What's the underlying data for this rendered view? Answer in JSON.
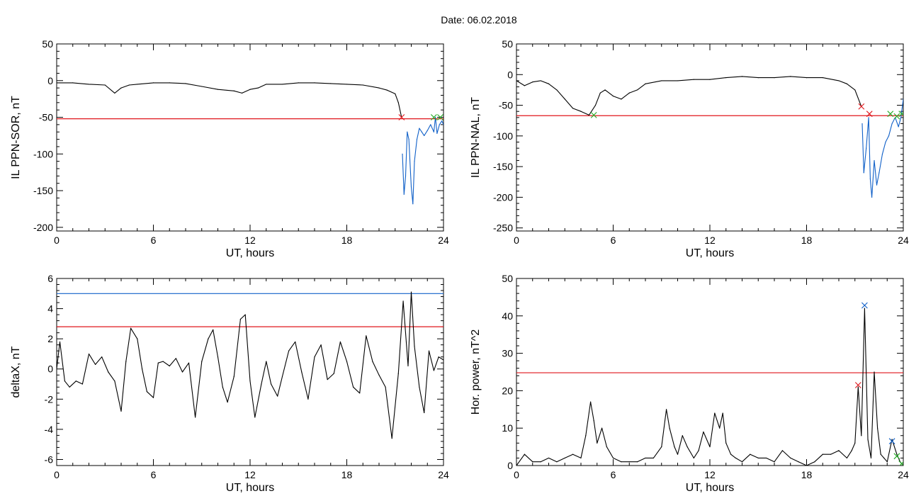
{
  "title": "Date:  06.02.2018",
  "colors": {
    "trace": "#000000",
    "threshold_red": "#e0161b",
    "threshold_blue": "#1060c8",
    "marker_green": "#22aa22"
  },
  "chart_data": [
    {
      "id": "sor",
      "type": "line",
      "xlabel": "UT, hours",
      "ylabel": "IL PPN-SOR, nT",
      "xlim": [
        0,
        24
      ],
      "ylim": [
        -205,
        50
      ],
      "xticks": [
        "0",
        "6",
        "12",
        "18",
        "24"
      ],
      "xtick_values": [
        0,
        6,
        12,
        18,
        24
      ],
      "yticks": [
        "50",
        "0",
        "-50",
        "-100",
        "-150",
        "-200"
      ],
      "ytick_values": [
        50,
        0,
        -50,
        -100,
        -150,
        -200
      ],
      "hlines": [
        {
          "y": -52,
          "color": "red"
        }
      ],
      "series": [
        {
          "color": "black",
          "x": [
            0,
            1,
            2,
            3,
            3.6,
            4,
            4.5,
            5,
            6,
            7,
            8,
            9,
            10,
            11,
            11.5,
            12,
            12.5,
            13,
            14,
            15,
            16,
            17,
            18,
            19,
            20,
            20.5,
            21,
            21.2,
            21.4
          ],
          "y": [
            -3,
            -3,
            -5,
            -6,
            -17,
            -10,
            -6,
            -5,
            -3,
            -3,
            -4,
            -8,
            -12,
            -14,
            -17,
            -12,
            -10,
            -5,
            -5,
            -3,
            -3,
            -4,
            -5,
            -6,
            -10,
            -13,
            -18,
            -30,
            -50
          ]
        },
        {
          "color": "blue",
          "x": [
            21.45,
            21.55,
            21.65,
            21.75,
            21.85,
            22.0,
            22.1,
            22.2,
            22.35,
            22.5,
            22.65,
            22.8,
            23.0,
            23.2,
            23.4,
            23.5,
            23.6,
            23.75,
            23.9,
            24
          ],
          "y": [
            -100,
            -155,
            -130,
            -70,
            -80,
            -145,
            -168,
            -110,
            -80,
            -65,
            -70,
            -75,
            -68,
            -60,
            -70,
            -50,
            -72,
            -60,
            -55,
            -60
          ]
        }
      ],
      "markers": [
        {
          "x": 21.4,
          "y": -50,
          "color": "red"
        },
        {
          "x": 23.4,
          "y": -50,
          "color": "green"
        },
        {
          "x": 23.8,
          "y": -50,
          "color": "green"
        }
      ]
    },
    {
      "id": "nal",
      "type": "line",
      "xlabel": "UT, hours",
      "ylabel": "IL PPN-NAL, nT",
      "xlim": [
        0,
        24
      ],
      "ylim": [
        -255,
        50
      ],
      "xticks": [
        "0",
        "6",
        "12",
        "18",
        "24"
      ],
      "xtick_values": [
        0,
        6,
        12,
        18,
        24
      ],
      "yticks": [
        "50",
        "0",
        "-50",
        "-100",
        "-150",
        "-200",
        "-250"
      ],
      "ytick_values": [
        50,
        0,
        -50,
        -100,
        -150,
        -200,
        -250
      ],
      "hlines": [
        {
          "y": -67,
          "color": "red"
        }
      ],
      "series": [
        {
          "color": "black",
          "x": [
            0,
            0.5,
            1,
            1.5,
            2,
            2.5,
            3,
            3.5,
            4,
            4.5,
            4.9,
            5.2,
            5.5,
            6,
            6.5,
            7,
            7.5,
            8,
            9,
            10,
            11,
            12,
            13,
            14,
            15,
            16,
            17,
            18,
            19,
            20,
            20.5,
            21,
            21.4
          ],
          "y": [
            -10,
            -18,
            -12,
            -10,
            -15,
            -25,
            -40,
            -55,
            -60,
            -66,
            -50,
            -30,
            -25,
            -35,
            -40,
            -30,
            -25,
            -15,
            -10,
            -10,
            -8,
            -8,
            -5,
            -3,
            -5,
            -5,
            -3,
            -5,
            -5,
            -10,
            -15,
            -25,
            -52
          ]
        },
        {
          "color": "blue",
          "x": [
            21.45,
            21.55,
            21.7,
            21.85,
            21.95,
            22.05,
            22.2,
            22.35,
            22.5,
            22.7,
            22.9,
            23.1,
            23.3,
            23.5,
            23.7,
            23.85,
            24
          ],
          "y": [
            -80,
            -160,
            -120,
            -70,
            -170,
            -200,
            -140,
            -180,
            -160,
            -130,
            -110,
            -100,
            -80,
            -70,
            -85,
            -70,
            -40
          ]
        }
      ],
      "markers": [
        {
          "x": 4.8,
          "y": -66,
          "color": "green"
        },
        {
          "x": 21.4,
          "y": -52,
          "color": "red"
        },
        {
          "x": 21.9,
          "y": -64,
          "color": "red"
        },
        {
          "x": 23.2,
          "y": -64,
          "color": "green"
        },
        {
          "x": 23.6,
          "y": -68,
          "color": "green"
        },
        {
          "x": 23.9,
          "y": -64,
          "color": "green"
        }
      ]
    },
    {
      "id": "deltax",
      "type": "line",
      "xlabel": "UT, hours",
      "ylabel": "deltaX, nT",
      "xlim": [
        0,
        24
      ],
      "ylim": [
        -6.4,
        6
      ],
      "xticks": [
        "0",
        "6",
        "12",
        "18",
        "24"
      ],
      "xtick_values": [
        0,
        6,
        12,
        18,
        24
      ],
      "yticks": [
        "6",
        "4",
        "2",
        "0",
        "-2",
        "-4",
        "-6"
      ],
      "ytick_values": [
        6,
        4,
        2,
        0,
        -2,
        -4,
        -6
      ],
      "hlines": [
        {
          "y": 5.0,
          "color": "blue"
        },
        {
          "y": 2.8,
          "color": "red"
        }
      ],
      "series": [
        {
          "color": "black",
          "x": [
            0,
            0.2,
            0.5,
            0.8,
            1.2,
            1.6,
            2,
            2.4,
            2.8,
            3.2,
            3.6,
            4,
            4.3,
            4.6,
            5,
            5.3,
            5.6,
            6,
            6.3,
            6.6,
            7,
            7.4,
            7.8,
            8.2,
            8.6,
            9,
            9.4,
            9.7,
            10,
            10.3,
            10.6,
            11,
            11.4,
            11.7,
            12,
            12.3,
            12.7,
            13,
            13.3,
            13.7,
            14,
            14.4,
            14.8,
            15.2,
            15.6,
            16,
            16.4,
            16.8,
            17.2,
            17.6,
            18,
            18.4,
            18.8,
            19.2,
            19.6,
            20,
            20.4,
            20.8,
            21.2,
            21.5,
            21.8,
            22,
            22.2,
            22.5,
            22.8,
            23.1,
            23.4,
            23.7,
            24
          ],
          "y": [
            0,
            1.8,
            -0.8,
            -1.2,
            -0.8,
            -1.0,
            1.0,
            0.3,
            0.8,
            -0.2,
            -0.8,
            -2.8,
            0.5,
            2.7,
            2.0,
            0.0,
            -1.5,
            -1.9,
            0.4,
            0.5,
            0.2,
            0.7,
            -0.2,
            0.4,
            -3.2,
            0.5,
            2.0,
            2.6,
            0.8,
            -1.2,
            -2.2,
            -0.5,
            3.3,
            3.6,
            -0.8,
            -3.2,
            -1.0,
            0.5,
            -1.0,
            -1.8,
            -0.5,
            1.2,
            1.8,
            -0.2,
            -2.0,
            0.8,
            1.6,
            -0.7,
            -0.3,
            1.8,
            0.5,
            -1.2,
            -1.6,
            2.2,
            0.5,
            -0.4,
            -1.2,
            -4.6,
            -0.3,
            4.5,
            0.2,
            5.1,
            1.5,
            -1.2,
            -2.9,
            1.2,
            -0.1,
            0.8,
            0.6
          ]
        }
      ],
      "markers": []
    },
    {
      "id": "hpower",
      "type": "line",
      "xlabel": "UT, hours",
      "ylabel": "Hor. power, nT^2",
      "xlim": [
        0,
        24
      ],
      "ylim": [
        0,
        50
      ],
      "xticks": [
        "0",
        "6",
        "12",
        "18",
        "24"
      ],
      "xtick_values": [
        0,
        6,
        12,
        18,
        24
      ],
      "yticks": [
        "50",
        "40",
        "30",
        "20",
        "10",
        "0"
      ],
      "ytick_values": [
        50,
        40,
        30,
        20,
        10,
        0
      ],
      "hlines": [
        {
          "y": 24.8,
          "color": "red"
        }
      ],
      "series": [
        {
          "color": "black",
          "x": [
            0,
            0.5,
            1,
            1.5,
            2,
            2.5,
            3,
            3.5,
            4,
            4.3,
            4.6,
            4.8,
            5,
            5.3,
            5.6,
            6,
            6.5,
            7,
            7.5,
            8,
            8.5,
            9,
            9.3,
            9.5,
            9.8,
            10,
            10.3,
            10.6,
            11,
            11.3,
            11.6,
            12,
            12.3,
            12.6,
            12.8,
            13,
            13.3,
            13.6,
            14,
            14.5,
            15,
            15.5,
            16,
            16.5,
            17,
            17.5,
            18,
            18.5,
            19,
            19.5,
            20,
            20.5,
            20.8,
            21,
            21.2,
            21.4,
            21.6,
            21.8,
            22,
            22.2,
            22.4,
            22.6,
            22.8,
            23,
            23.3,
            23.6,
            23.8,
            24
          ],
          "y": [
            0,
            3,
            1,
            1,
            2,
            1,
            2,
            3,
            2,
            8,
            17,
            12,
            6,
            10,
            5,
            2,
            1,
            1,
            1,
            2,
            2,
            5,
            15,
            10,
            5,
            3,
            8,
            5,
            2,
            4,
            9,
            5,
            14,
            10,
            14,
            6,
            3,
            2,
            1,
            3,
            2,
            2,
            1,
            4,
            2,
            1,
            0,
            1,
            3,
            3,
            4,
            2,
            4,
            6,
            21,
            8,
            42,
            7,
            2,
            25,
            10,
            3,
            2,
            1,
            7,
            3,
            1,
            0
          ]
        }
      ],
      "markers": [
        {
          "x": 21.2,
          "y": 21.5,
          "color": "red"
        },
        {
          "x": 21.6,
          "y": 42.8,
          "color": "blue"
        },
        {
          "x": 23.3,
          "y": 6.5,
          "color": "blue"
        },
        {
          "x": 23.6,
          "y": 2.5,
          "color": "green"
        },
        {
          "x": 23.9,
          "y": 0.5,
          "color": "green"
        }
      ]
    }
  ]
}
